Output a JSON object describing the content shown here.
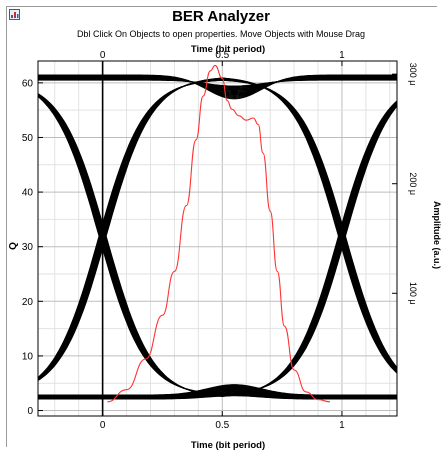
{
  "window": {
    "title": "BER Analyzer",
    "instructions": "Dbl Click On Objects to open properties.  Move Objects with Mouse Drag",
    "icon": "chart-icon"
  },
  "chart_data": {
    "type": "line",
    "xlabel_top": "Time (bit period)",
    "xlabel_bottom": "Time (bit period)",
    "ylabel_left": "Q",
    "ylabel_right": "Amplitude (a.u.)",
    "x_range": [
      -0.27,
      1.23
    ],
    "x_ticks": [
      0,
      0.5,
      1
    ],
    "x_tick_labels": [
      "0",
      "0.5",
      "1"
    ],
    "y_left_range": [
      -1,
      64
    ],
    "y_left_ticks": [
      0,
      10,
      20,
      30,
      40,
      50,
      60
    ],
    "y_left_tick_labels": [
      "0",
      "10",
      "20",
      "30",
      "40",
      "50",
      "60"
    ],
    "y_right_range": [
      -1.2e-05,
      0.000312
    ],
    "y_right_ticks": [
      0.0001,
      0.0002,
      0.0003
    ],
    "y_right_tick_labels": [
      "100 μ",
      "200 μ",
      "300 μ"
    ],
    "grid": true,
    "eye_diagram": {
      "high_level": 61,
      "low_level": 2.5,
      "crossing_level": 31,
      "crossings_x": [
        0,
        1
      ]
    },
    "series": [
      {
        "color": "#ff3333",
        "x": [
          0.02,
          0.1,
          0.18,
          0.25,
          0.3,
          0.35,
          0.39,
          0.42,
          0.45,
          0.47,
          0.5,
          0.52,
          0.54,
          0.57,
          0.6,
          0.63,
          0.65,
          0.67,
          0.7,
          0.73,
          0.76,
          0.8,
          0.85,
          0.9,
          0.95
        ],
        "y": [
          1e-06,
          1.2e-05,
          4e-05,
          8e-05,
          0.00012,
          0.00018,
          0.00024,
          0.00028,
          0.000303,
          0.000308,
          0.000296,
          0.000276,
          0.000268,
          0.000262,
          0.000258,
          0.00026,
          0.000254,
          0.000228,
          0.000175,
          0.00012,
          7e-05,
          3e-05,
          1e-05,
          3e-06,
          1e-06
        ]
      }
    ]
  }
}
